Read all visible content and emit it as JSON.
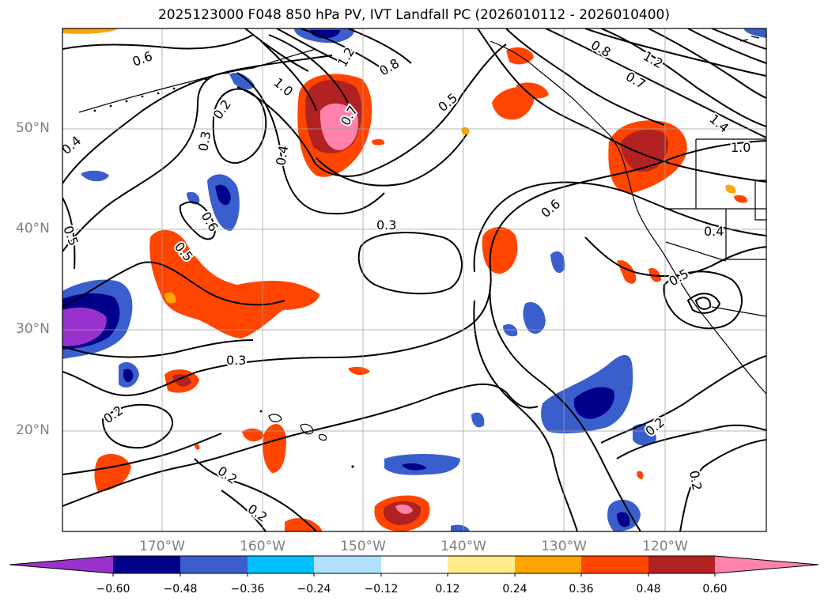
{
  "title": "2025123000 F048 850 hPa PV, IVT Landfall PC (2026010112 - 2026010400)",
  "lat_labels": [
    "50°N",
    "40°N",
    "30°N",
    "20°N"
  ],
  "lon_labels": [
    "170°W",
    "160°W",
    "150°W",
    "140°W",
    "130°W",
    "120°W"
  ],
  "contour_labels": [
    "0.6",
    "0.4",
    "0.3",
    "0.2",
    "1.0",
    "1.2",
    "0.8",
    "0.7",
    "0.5",
    "0.4",
    "0.6",
    "0.5",
    "0.3",
    "0.6",
    "0.8",
    "0.7",
    "1.2",
    "1.4",
    "1.0",
    "0.4",
    "0.5",
    "0.3",
    "0.2",
    "0.2",
    "0.2",
    "0.2",
    "0.2",
    "0.5"
  ],
  "colorbar": {
    "ticks": [
      "−0.60",
      "−0.48",
      "−0.36",
      "−0.24",
      "−0.12",
      "0.12",
      "0.24",
      "0.36",
      "0.48",
      "0.60"
    ],
    "colors": [
      "#9932cc",
      "#00008b",
      "#3a5fcd",
      "#00bfff",
      "#b0e2ff",
      "#ffffff",
      "#ffec8b",
      "#ffa500",
      "#ff4500",
      "#b22222",
      "#ff82ab"
    ]
  }
}
